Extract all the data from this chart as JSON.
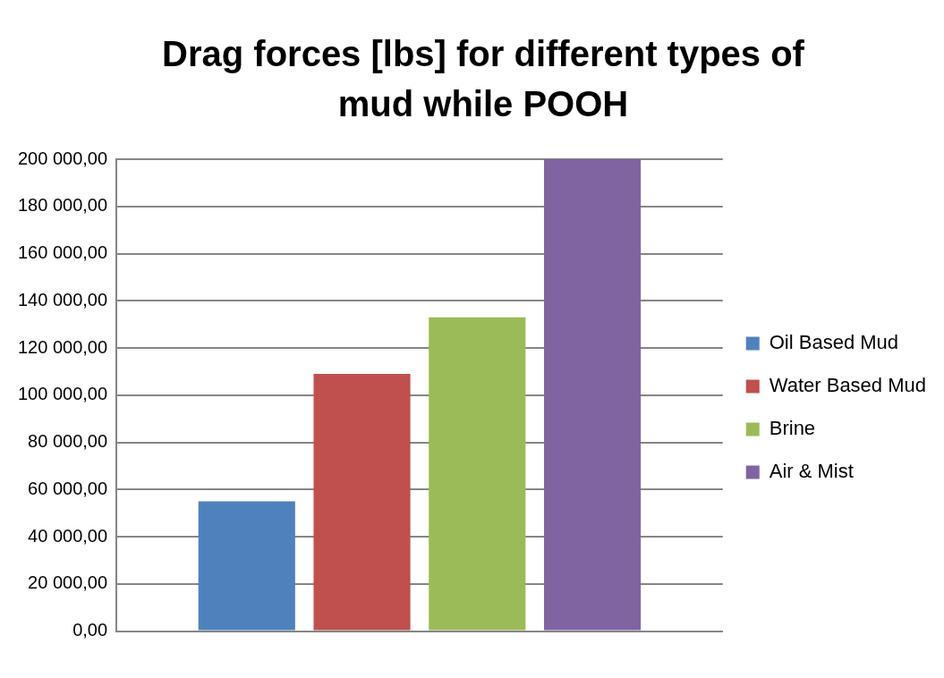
{
  "chart_data": {
    "type": "bar",
    "title": "Drag forces [lbs] for different types of mud while POOH",
    "categories": [
      null
    ],
    "series": [
      {
        "name": "Oil Based Mud",
        "color": "#4f81bd",
        "values": [
          55000
        ]
      },
      {
        "name": "Water Based Mud",
        "color": "#c0504d",
        "values": [
          109000
        ]
      },
      {
        "name": "Brine",
        "color": "#9bbb59",
        "values": [
          133000
        ]
      },
      {
        "name": "Air & Mist",
        "color": "#8064a2",
        "values": [
          200000
        ]
      }
    ],
    "ylim": [
      0,
      200000
    ],
    "yticks": [
      {
        "value": 0,
        "label": "0,00"
      },
      {
        "value": 20000,
        "label": "20 000,00"
      },
      {
        "value": 40000,
        "label": "40 000,00"
      },
      {
        "value": 60000,
        "label": "60 000,00"
      },
      {
        "value": 80000,
        "label": "80 000,00"
      },
      {
        "value": 100000,
        "label": "100 000,00"
      },
      {
        "value": 120000,
        "label": "120 000,00"
      },
      {
        "value": 140000,
        "label": "140 000,00"
      },
      {
        "value": 160000,
        "label": "160 000,00"
      },
      {
        "value": 180000,
        "label": "180 000,00"
      },
      {
        "value": 200000,
        "label": "200 000,00"
      }
    ],
    "grid": "y",
    "legend": "right"
  }
}
